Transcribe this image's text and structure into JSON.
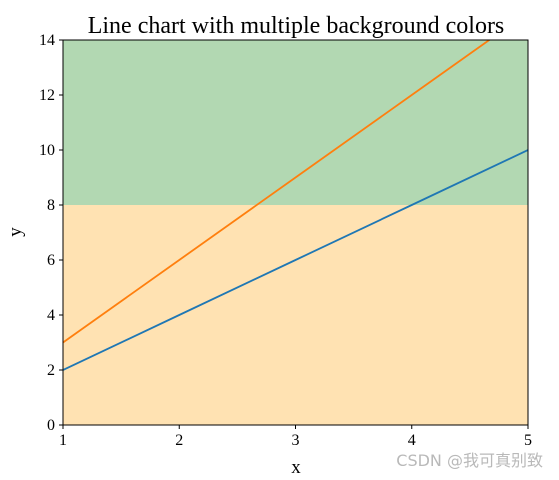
{
  "chart_data": {
    "type": "line",
    "title": "Line chart with multiple background colors",
    "xlabel": "x",
    "ylabel": "y",
    "xlim": [
      1,
      5
    ],
    "ylim": [
      0,
      14
    ],
    "x_ticks": [
      "1",
      "2",
      "3",
      "4",
      "5"
    ],
    "y_ticks": [
      "0",
      "2",
      "4",
      "6",
      "8",
      "10",
      "12",
      "14"
    ],
    "grid": false,
    "legend": false,
    "series": [
      {
        "x": [
          1,
          2,
          3,
          4,
          5
        ],
        "y": [
          2,
          4,
          6,
          8,
          10
        ],
        "color": "#1f77b4"
      },
      {
        "x": [
          1,
          2,
          3,
          4,
          5
        ],
        "y": [
          3,
          6,
          9,
          12,
          15
        ],
        "color": "#ff7f0e"
      }
    ],
    "background_bands": [
      {
        "y_range": [
          0,
          8
        ],
        "color": "#ffe2b2"
      },
      {
        "y_range": [
          8,
          14
        ],
        "color": "#b2d8b2"
      }
    ]
  },
  "watermark": "CSDN @我可真别致"
}
